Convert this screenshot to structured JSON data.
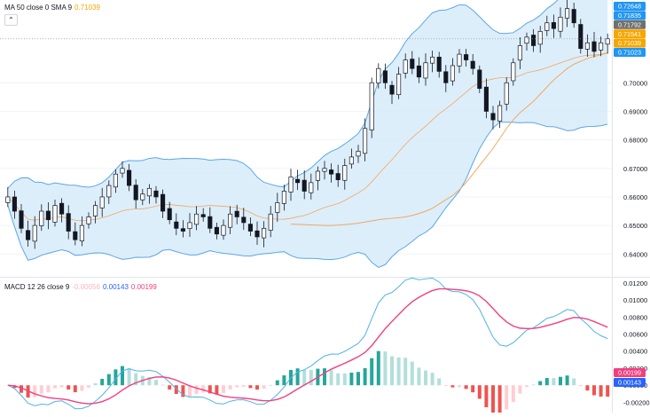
{
  "legend_ma": {
    "label": "MA 50 close 0 SMA 9",
    "value": "0.71039",
    "value_color": "#f7a600"
  },
  "legend_macd": {
    "label": "MACD 12 26 close 9",
    "values": [
      "-0.00056",
      "0.00143",
      "0.00199"
    ],
    "colors": [
      "#f7b6c1",
      "#2962ff",
      "#f23f7f"
    ]
  },
  "collapse_icon": "chevron-up-icon",
  "colors": {
    "up_candle": "#ffffff",
    "down_candle": "#131722",
    "bb_fill": "#cfe7f9",
    "bb_line": "#5aa7e6",
    "bb_basis": "#f0a860",
    "sma50": "#f0a860",
    "macd_line": "#4fb3e6",
    "signal_line": "#f23f7f",
    "hist_pos_strong": "#26a69a",
    "hist_pos_weak": "#b2dfdb",
    "hist_neg_strong": "#ef5350",
    "hist_neg_weak": "#ffcdd2"
  },
  "chart_data": [
    {
      "type": "candlestick",
      "title": "",
      "overlays": [
        "Bollinger Bands",
        "MA 50"
      ],
      "ylim": [
        0.632,
        0.729
      ],
      "y_ticks": [
        "0.64000",
        "0.65000",
        "0.66000",
        "0.67000",
        "0.68000",
        "0.69000",
        "0.70000"
      ],
      "price_badges": [
        {
          "value": "0.72648",
          "color": "#2196f3"
        },
        {
          "value": "0.71835",
          "color": "#2196f3"
        },
        {
          "value": "0.71792",
          "color": "#707070"
        },
        {
          "value": "0.71541",
          "color": "#f7a600"
        },
        {
          "value": "0.71039",
          "color": "#f7a600"
        },
        {
          "value": "0.71023",
          "color": "#2196f3"
        }
      ],
      "close": [
        0.66,
        0.655,
        0.649,
        0.645,
        0.65,
        0.655,
        0.652,
        0.657,
        0.654,
        0.648,
        0.645,
        0.65,
        0.653,
        0.657,
        0.66,
        0.664,
        0.668,
        0.67,
        0.664,
        0.659,
        0.661,
        0.663,
        0.66,
        0.655,
        0.652,
        0.649,
        0.648,
        0.651,
        0.654,
        0.653,
        0.649,
        0.647,
        0.65,
        0.654,
        0.653,
        0.651,
        0.648,
        0.646,
        0.649,
        0.654,
        0.658,
        0.662,
        0.667,
        0.665,
        0.662,
        0.665,
        0.669,
        0.67,
        0.668,
        0.666,
        0.671,
        0.674,
        0.676,
        0.684,
        0.7,
        0.705,
        0.7,
        0.696,
        0.703,
        0.708,
        0.705,
        0.702,
        0.707,
        0.709,
        0.704,
        0.7,
        0.706,
        0.71,
        0.708,
        0.705,
        0.698,
        0.69,
        0.687,
        0.692,
        0.7,
        0.707,
        0.713,
        0.716,
        0.713,
        0.718,
        0.721,
        0.719,
        0.723,
        0.726,
        0.721,
        0.712,
        0.714,
        0.711,
        0.714,
        0.7154
      ],
      "sma50": [
        0.6505,
        0.6504,
        0.6503,
        0.6502,
        0.6501,
        0.65,
        0.65,
        0.6501,
        0.6503,
        0.6505,
        0.6508,
        0.6512,
        0.6516,
        0.652,
        0.6523,
        0.6525,
        0.6527,
        0.653,
        0.6535,
        0.6542,
        0.655,
        0.656,
        0.6575,
        0.659,
        0.6605,
        0.6625,
        0.665,
        0.668,
        0.671,
        0.674,
        0.677,
        0.6805,
        0.684,
        0.687,
        0.6895,
        0.6915,
        0.6935,
        0.696,
        0.6985,
        0.701,
        0.703,
        0.705,
        0.7065,
        0.7075,
        0.7085,
        0.7092,
        0.7098,
        0.7104
      ],
      "sma50_start": 42,
      "bb_window": 20,
      "bb_mult": 2
    },
    {
      "type": "macd",
      "title": "",
      "ylim": [
        -0.0032,
        0.0126
      ],
      "y_ticks": [
        "0.01200",
        "0.01000",
        "0.00800",
        "0.00600",
        "0.00400",
        "0.00200",
        "0.00000",
        "-0.00200"
      ],
      "macd_badge": {
        "value": "0.00143",
        "color": "#2962ff"
      },
      "signal_badge": {
        "value": "0.00199",
        "color": "#f23f7f"
      },
      "fast": 12,
      "slow": 26,
      "signal": 9
    }
  ]
}
